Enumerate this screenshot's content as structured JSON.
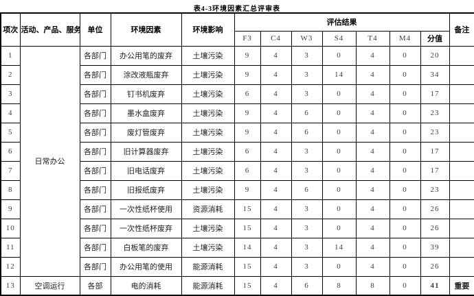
{
  "title": "表4-3环境因素汇总评审表",
  "table": {
    "headers": {
      "item_no": "项次",
      "activity": "活动、产品、服务",
      "unit": "单位",
      "env_factor": "环境因素",
      "env_impact": "环境影响",
      "eval_result": "评估结果",
      "sub": [
        "F3",
        "C4",
        "W3",
        "S4",
        "T4",
        "M4",
        "分值"
      ],
      "remark": "备注"
    },
    "rows": [
      {
        "no": "1",
        "activity": "日常办公",
        "activity_rowspan": 12,
        "unit": "各部门",
        "factor": "办公用笔的废弃",
        "impact": "土壤污染",
        "f3": "9",
        "c4": "4",
        "w3": "3",
        "s4": "0",
        "t4": "4",
        "m4": "0",
        "score": "20",
        "remark": ""
      },
      {
        "no": "2",
        "unit": "各部门",
        "factor": "涂改液瓶废弃",
        "impact": "土壤污染",
        "f3": "9",
        "c4": "4",
        "w3": "3",
        "s4": "14",
        "t4": "4",
        "m4": "0",
        "score": "34",
        "remark": ""
      },
      {
        "no": "3",
        "unit": "各部门",
        "factor": "钉书机废弃",
        "impact": "土壤污染",
        "f3": "6",
        "c4": "4",
        "w3": "3",
        "s4": "0",
        "t4": "4",
        "m4": "0",
        "score": "17",
        "remark": ""
      },
      {
        "no": "4",
        "unit": "各部门",
        "factor": "墨水盒废弃",
        "impact": "土壤污染",
        "f3": "9",
        "c4": "4",
        "w3": "6",
        "s4": "0",
        "t4": "4",
        "m4": "0",
        "score": "23",
        "remark": ""
      },
      {
        "no": "5",
        "unit": "各部门",
        "factor": "废灯管废弃",
        "impact": "土壤污染",
        "f3": "9",
        "c4": "4",
        "w3": "6",
        "s4": "0",
        "t4": "4",
        "m4": "0",
        "score": "23",
        "remark": ""
      },
      {
        "no": "6",
        "unit": "各部门",
        "factor": "旧计算器废弃",
        "impact": "土壤污染",
        "f3": "6",
        "c4": "4",
        "w3": "3",
        "s4": "0",
        "t4": "4",
        "m4": "0",
        "score": "17",
        "remark": ""
      },
      {
        "no": "7",
        "unit": "各部门",
        "factor": "旧电话废弃",
        "impact": "土壤污染",
        "f3": "6",
        "c4": "4",
        "w3": "3",
        "s4": "0",
        "t4": "4",
        "m4": "0",
        "score": "17",
        "remark": ""
      },
      {
        "no": "8",
        "unit": "各部门",
        "factor": "旧报纸废弃",
        "impact": "土壤污染",
        "f3": "9",
        "c4": "4",
        "w3": "6",
        "s4": "0",
        "t4": "4",
        "m4": "0",
        "score": "23",
        "remark": ""
      },
      {
        "no": "9",
        "unit": "各部门",
        "factor": "一次性纸杯使用",
        "impact": "资源消耗",
        "f3": "15",
        "c4": "4",
        "w3": "3",
        "s4": "0",
        "t4": "4",
        "m4": "0",
        "score": "26",
        "remark": ""
      },
      {
        "no": "10",
        "unit": "各部门",
        "factor": "一次性纸杯废弃",
        "impact": "土壤污染",
        "f3": "15",
        "c4": "4",
        "w3": "3",
        "s4": "0",
        "t4": "4",
        "m4": "0",
        "score": "26",
        "remark": ""
      },
      {
        "no": "11",
        "unit": "各部门",
        "factor": "白板笔的废弃",
        "impact": "土壤污染",
        "f3": "14",
        "c4": "4",
        "w3": "3",
        "s4": "14",
        "t4": "4",
        "m4": "0",
        "score": "39",
        "remark": ""
      },
      {
        "no": "12",
        "unit": "各部门",
        "factor": "办公用笔的使用",
        "impact": "能源消耗",
        "f3": "15",
        "c4": "4",
        "w3": "3",
        "s4": "0",
        "t4": "4",
        "m4": "0",
        "score": "26",
        "remark": ""
      },
      {
        "no": "13",
        "activity": "空调运行",
        "activity_rowspan": 1,
        "unit": "各部",
        "factor": "电的消耗",
        "impact": "能源消耗",
        "f3": "15",
        "c4": "4",
        "w3": "6",
        "s4": "8",
        "t4": "8",
        "m4": "0",
        "score": "41",
        "score_bold": true,
        "remark": "重要",
        "remark_bold": true
      }
    ]
  }
}
